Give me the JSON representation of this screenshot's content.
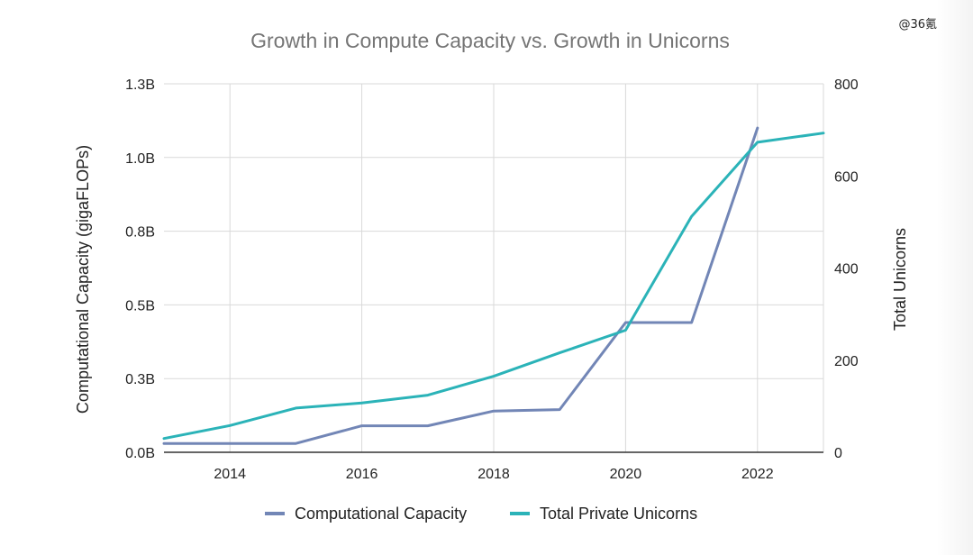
{
  "watermark": "@36氪",
  "chart_data": {
    "type": "line",
    "title": "Growth in Compute Capacity vs. Growth in Unicorns",
    "ylabel_left": "Computational Capacity (gigaFLOPs)",
    "ylabel_right": "Total Unicorns",
    "x": [
      2013,
      2014,
      2015,
      2016,
      2017,
      2018,
      2019,
      2020,
      2021,
      2022,
      2023
    ],
    "x_ticks": [
      2014,
      2016,
      2018,
      2020,
      2022
    ],
    "xlim": [
      2013,
      2023
    ],
    "ylim_left": [
      0,
      1250000000
    ],
    "ylim_right": [
      0,
      800
    ],
    "y_ticks_left": [
      "0.0B",
      "0.3B",
      "0.5B",
      "0.8B",
      "1.0B",
      "1.3B"
    ],
    "y_ticks_right": [
      "0",
      "200",
      "400",
      "600",
      "800"
    ],
    "grid": true,
    "legend_position": "bottom",
    "colors": {
      "compute": "#7286b6",
      "unicorns": "#2bb3b8",
      "grid": "#d9d9d9",
      "title": "#757575",
      "text": "#222222"
    },
    "series": [
      {
        "name": "Computational Capacity",
        "axis": "left",
        "x": [
          2013,
          2014,
          2015,
          2016,
          2017,
          2018,
          2019,
          2020,
          2021,
          2022
        ],
        "values": [
          30000000,
          30000000,
          30000000,
          90000000,
          90000000,
          140000000,
          145000000,
          440000000,
          440000000,
          1100000000
        ]
      },
      {
        "name": "Total Private Unicorns",
        "axis": "right",
        "x": [
          2013,
          2014,
          2015,
          2016,
          2017,
          2018,
          2019,
          2020,
          2021,
          2022,
          2023
        ],
        "values": [
          30,
          58,
          96,
          107,
          124,
          165,
          216,
          265,
          512,
          673,
          693
        ]
      }
    ]
  }
}
